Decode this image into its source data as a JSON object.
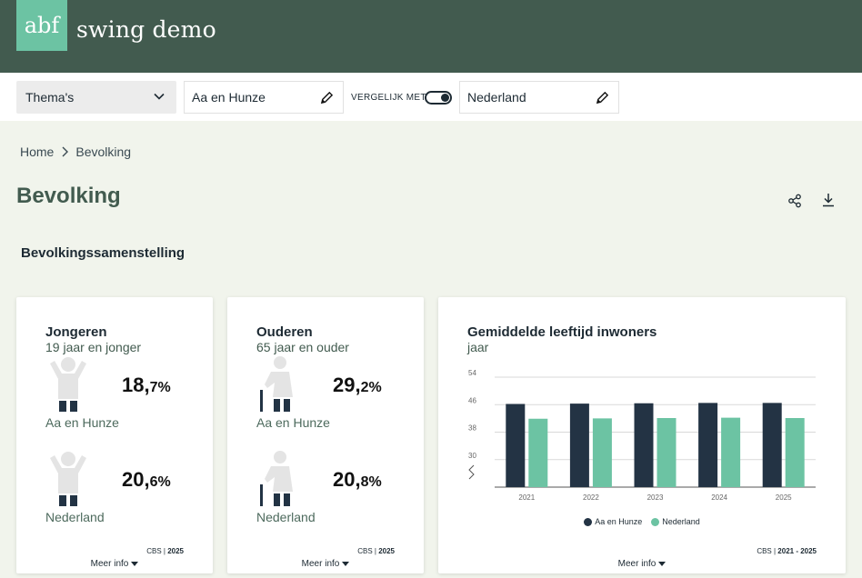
{
  "app": {
    "logo": "abf",
    "title": "swing demo"
  },
  "filters": {
    "thema": "Thema's",
    "region": "Aa en Hunze",
    "compare_label": "VERGELIJK MET",
    "compare_on": true,
    "compare_region": "Nederland"
  },
  "breadcrumb": {
    "home": "Home",
    "current": "Bevolking"
  },
  "page": {
    "title": "Bevolking",
    "section": "Bevolkingssamenstelling"
  },
  "cards": {
    "jongeren": {
      "title": "Jongeren",
      "subtitle": "19 jaar en jonger",
      "a_int": "18,",
      "a_dec": "7%",
      "a_region": "Aa en Hunze",
      "b_int": "20,",
      "b_dec": "6%",
      "b_region": "Nederland",
      "source": "CBS",
      "year": "2025",
      "more": "Meer info"
    },
    "ouderen": {
      "title": "Ouderen",
      "subtitle": "65 jaar en ouder",
      "a_int": "29,",
      "a_dec": "2%",
      "a_region": "Aa en Hunze",
      "b_int": "20,",
      "b_dec": "8%",
      "b_region": "Nederland",
      "source": "CBS",
      "year": "2025",
      "more": "Meer info"
    },
    "leeftijd": {
      "title": "Gemiddelde leeftijd inwoners",
      "subtitle": "jaar",
      "source": "CBS",
      "year": "2021 - 2025",
      "more": "Meer info"
    }
  },
  "colors": {
    "header": "#425b4f",
    "accent": "#6cc3a3",
    "series_a": "#233344",
    "series_b": "#6cc3a3"
  },
  "chart_data": {
    "type": "bar",
    "title": "Gemiddelde leeftijd inwoners",
    "subtitle": "jaar",
    "categories": [
      "2021",
      "2022",
      "2023",
      "2024",
      "2025"
    ],
    "series": [
      {
        "name": "Aa en Hunze",
        "values": [
          46.2,
          46.3,
          46.4,
          46.5,
          46.5
        ]
      },
      {
        "name": "Nederland",
        "values": [
          41.9,
          42.0,
          42.1,
          42.2,
          42.1
        ]
      }
    ],
    "yticks": [
      "54",
      "46",
      "38",
      "30"
    ],
    "ylim": [
      22,
      54
    ],
    "axis_break": true,
    "grid": true,
    "legend": "bottom"
  }
}
